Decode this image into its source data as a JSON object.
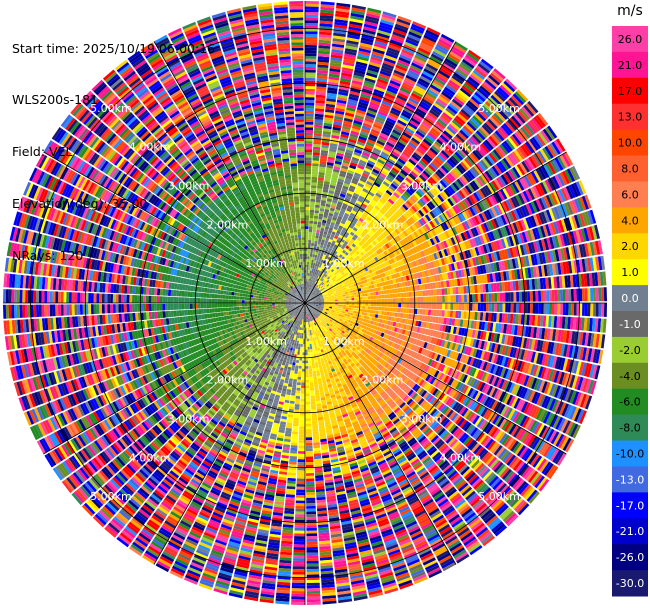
{
  "header": {
    "start_time": "Start time: 2025/10/19 06:00:16",
    "instrument": "WLS200s-181",
    "field": "Field: VEL",
    "elevation": "Elevation(deg): 35.00",
    "nrays": "NRays: 120"
  },
  "colorbar": {
    "unit": "m/s",
    "ticks": [
      "26.0",
      "21.0",
      "17.0",
      "13.0",
      "10.0",
      "8.0",
      "6.0",
      "4.0",
      "2.0",
      "1.0",
      "0.0",
      "-1.0",
      "-2.0",
      "-4.0",
      "-6.0",
      "-8.0",
      "-10.0",
      "-13.0",
      "-17.0",
      "-21.0",
      "-26.0",
      "-30.0"
    ],
    "colors": [
      "#ff3ea8",
      "#ff1493",
      "#ff0000",
      "#ff3030",
      "#ff4500",
      "#ff6030",
      "#ff7f50",
      "#ffa500",
      "#ffd700",
      "#ffff00",
      "#708090",
      "#696969",
      "#9acd32",
      "#6b8e23",
      "#228b22",
      "#2e8b57",
      "#1e90ff",
      "#4169e1",
      "#0000ff",
      "#0000cd",
      "#000080",
      "#191970"
    ]
  },
  "chart_data": {
    "type": "heatmap",
    "projection": "polar PPI scan",
    "field": "VEL",
    "units": "m/s",
    "elevation_deg": 35.0,
    "n_rays": 120,
    "range_rings": [
      "1.00km",
      "2.00km",
      "3.00km",
      "4.00km",
      "5.00km"
    ],
    "max_range_km": 5.5,
    "pattern": "inner ~2.5 km coherent radial velocity: west/north-west sector near zero/negative (greens, blues), east/south-east sector positive (yellows, oranges); beyond ~2.5 km noisy speckle across full color range"
  }
}
